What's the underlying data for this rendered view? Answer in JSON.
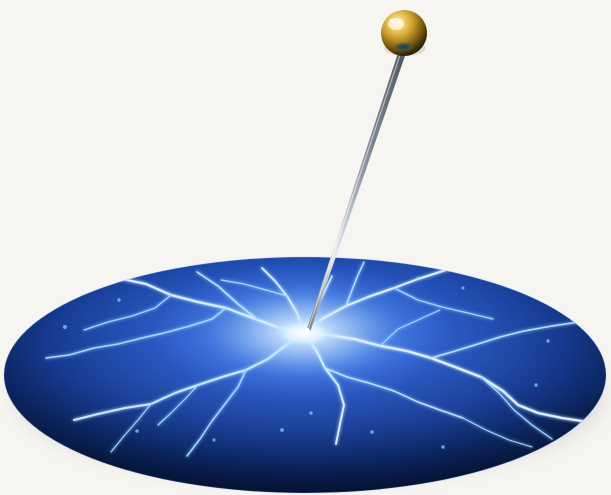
{
  "scene": {
    "background": "#f7f5f1",
    "disc_center_color": "#2f63d7",
    "disc_mid_color": "#123a8c",
    "disc_edge_color": "#071a4a",
    "lightning_color": "#9ed6ff",
    "glow_color": "#ffffff",
    "needle_shaft_color": "#8f96a4",
    "needle_head_color": "#c9a43a"
  }
}
